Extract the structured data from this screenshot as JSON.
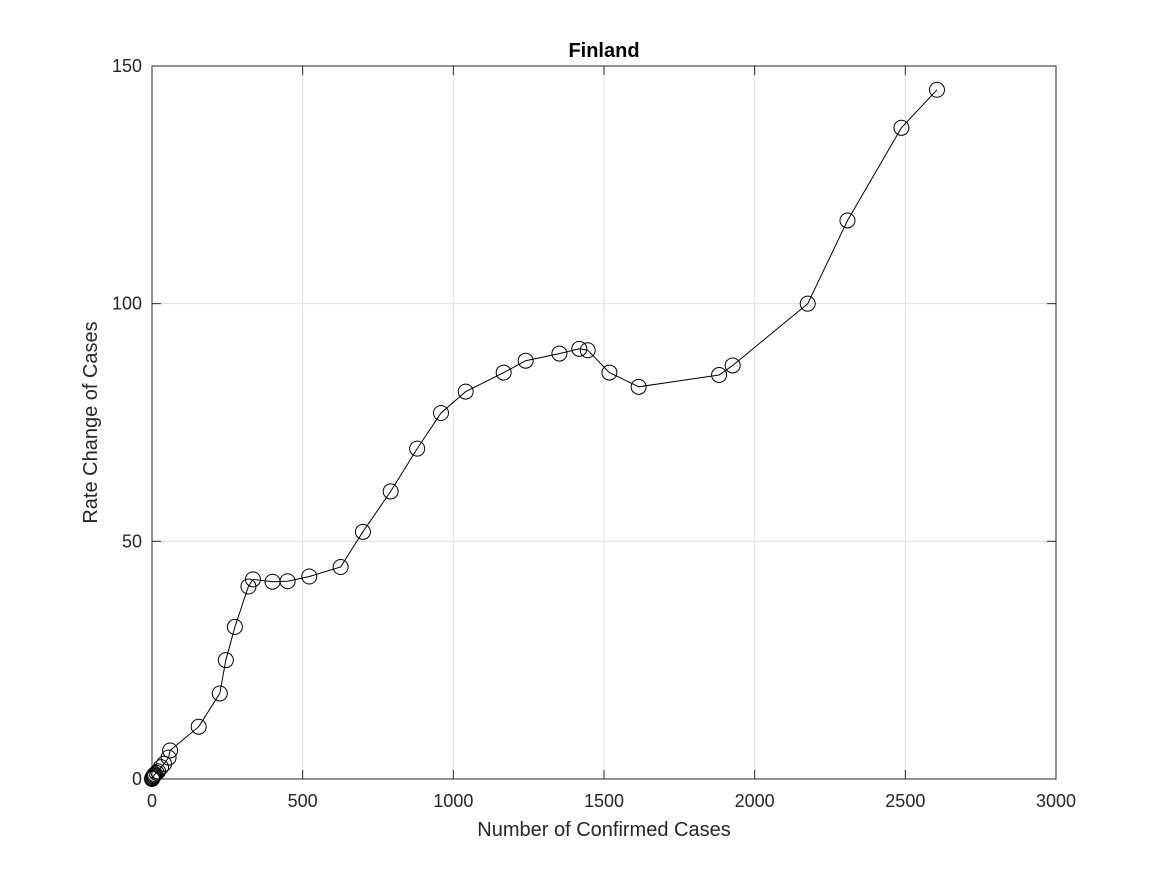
{
  "chart_data": {
    "type": "line",
    "title": "Finland",
    "xlabel": "Number of Confirmed Cases",
    "ylabel": "Rate Change of Cases",
    "xlim": [
      0,
      3000
    ],
    "ylim": [
      0,
      150
    ],
    "xticks": [
      0,
      500,
      1000,
      1500,
      2000,
      2500,
      3000
    ],
    "yticks": [
      0,
      50,
      100,
      150
    ],
    "xtick_labels": [
      "0",
      "500",
      "1000",
      "1500",
      "2000",
      "2500",
      "3000"
    ],
    "ytick_labels": [
      "0",
      "50",
      "100",
      "150"
    ],
    "grid": true,
    "marker": "circle",
    "line_color": "#000000",
    "series": [
      {
        "x": [
          0,
          1,
          3,
          5,
          7,
          10,
          15,
          20,
          30,
          40,
          55,
          60,
          155,
          225,
          245,
          275,
          320,
          335,
          400,
          450,
          522,
          626,
          700,
          792,
          880,
          959,
          1041,
          1167,
          1240,
          1352,
          1418,
          1446,
          1518,
          1615,
          1882,
          1927,
          2176,
          2308,
          2487,
          2605
        ],
        "y": [
          0,
          0.2,
          0.4,
          0.6,
          0.8,
          1,
          1.3,
          1.6,
          2.5,
          3.2,
          4.5,
          6,
          11,
          18,
          25,
          32,
          40.5,
          42,
          41.5,
          41.6,
          42.6,
          44.6,
          52,
          60.5,
          69.5,
          77,
          81.5,
          85.5,
          88,
          89.5,
          90.5,
          90.2,
          85.5,
          82.5,
          85,
          87,
          100,
          117.5,
          137,
          145
        ]
      }
    ]
  }
}
